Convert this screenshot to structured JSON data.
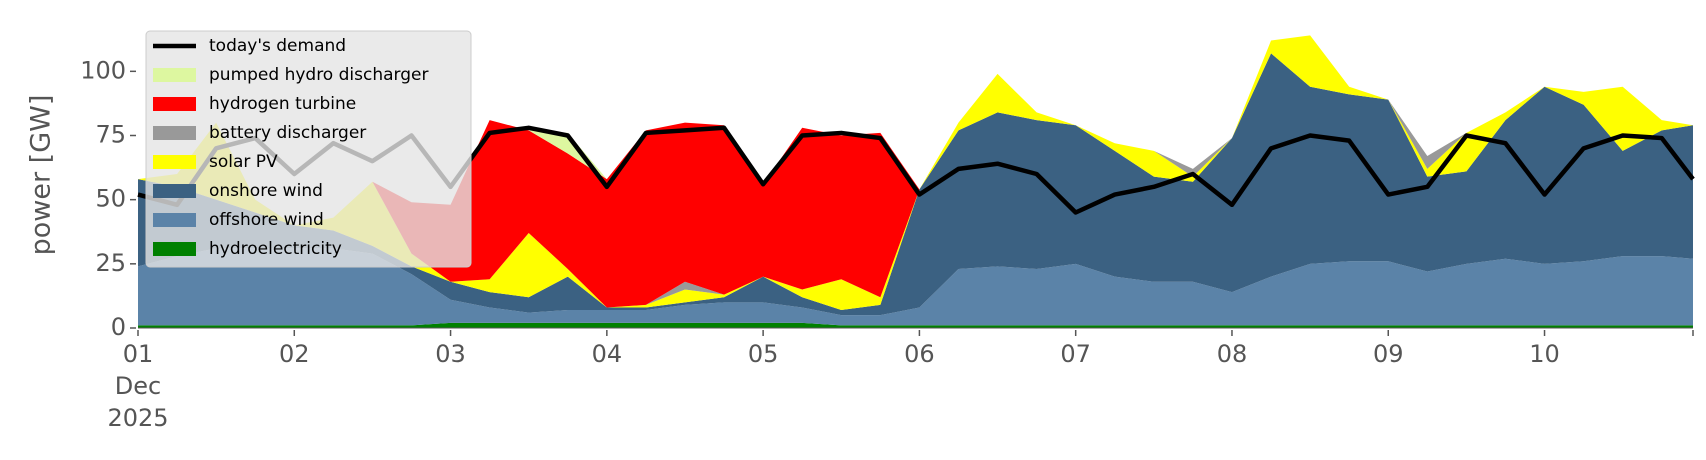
{
  "chart_data": {
    "type": "stacked-area",
    "y_label": "power [GW]",
    "x": [
      1,
      1.25,
      1.5,
      1.75,
      2,
      2.25,
      2.5,
      2.75,
      3,
      3.25,
      3.5,
      3.75,
      4,
      4.25,
      4.5,
      4.75,
      5,
      5.25,
      5.5,
      5.75,
      6,
      6.25,
      6.5,
      6.75,
      7,
      7.25,
      7.5,
      7.75,
      8,
      8.25,
      8.5,
      8.75,
      9,
      9.25,
      9.5,
      9.75,
      10,
      10.25,
      10.5,
      10.75,
      10.95
    ],
    "xlim": [
      1,
      10.95
    ],
    "xticks": [
      {
        "value": 1,
        "label": "01\nDec\n2025"
      },
      {
        "value": 2,
        "label": "02"
      },
      {
        "value": 3,
        "label": "03"
      },
      {
        "value": 4,
        "label": "04"
      },
      {
        "value": 5,
        "label": "05"
      },
      {
        "value": 6,
        "label": "06"
      },
      {
        "value": 7,
        "label": "07"
      },
      {
        "value": 8,
        "label": "08"
      },
      {
        "value": 9,
        "label": "09"
      },
      {
        "value": 10,
        "label": "10"
      }
    ],
    "ylim": [
      0,
      120
    ],
    "yticks": [
      0,
      25,
      50,
      75,
      100
    ],
    "demand": {
      "name": "today's demand",
      "color": "#000000",
      "values": [
        52,
        48,
        70,
        74,
        60,
        72,
        65,
        75,
        55,
        76,
        78,
        75,
        55,
        76,
        77,
        78,
        56,
        75,
        76,
        74,
        52,
        62,
        64,
        60,
        45,
        52,
        55,
        60,
        48,
        70,
        75,
        73,
        52,
        55,
        75,
        72,
        52,
        70,
        75,
        74,
        58
      ]
    },
    "series": [
      {
        "name": "pumped hydro discharger",
        "color": "#ddf7a0",
        "values": [
          0,
          0,
          0,
          0,
          0,
          0,
          0,
          0,
          0,
          0,
          0,
          8,
          0,
          0,
          0,
          0,
          0,
          0,
          0,
          0,
          0,
          0,
          0,
          0,
          0,
          0,
          0,
          0,
          0,
          0,
          0,
          0,
          0,
          0,
          0,
          0,
          0,
          0,
          0,
          0,
          0
        ]
      },
      {
        "name": "hydrogen turbine",
        "color": "#ff0000",
        "values": [
          0,
          0,
          0,
          0,
          0,
          0,
          0,
          20,
          30,
          62,
          40,
          45,
          50,
          68,
          62,
          66,
          36,
          63,
          56,
          64,
          0,
          0,
          0,
          0,
          0,
          0,
          0,
          0,
          0,
          0,
          0,
          0,
          0,
          0,
          0,
          0,
          0,
          0,
          0,
          0,
          0
        ]
      },
      {
        "name": "battery discharger",
        "color": "#999999",
        "values": [
          0,
          0,
          0,
          0,
          0,
          0,
          0,
          0,
          0,
          0,
          0,
          0,
          0,
          0,
          3,
          0,
          0,
          0,
          0,
          0,
          0,
          0,
          0,
          0,
          0,
          0,
          0,
          3,
          0,
          0,
          0,
          0,
          0,
          5,
          0,
          0,
          0,
          0,
          0,
          0,
          0
        ]
      },
      {
        "name": "solar PV",
        "color": "#ffff00",
        "values": [
          0,
          5,
          30,
          5,
          0,
          5,
          25,
          5,
          0,
          5,
          25,
          3,
          0,
          1,
          5,
          1,
          0,
          3,
          12,
          3,
          0,
          3,
          15,
          3,
          0,
          3,
          10,
          2,
          0,
          5,
          20,
          3,
          0,
          3,
          15,
          3,
          0,
          5,
          25,
          4,
          0
        ]
      },
      {
        "name": "onshore wind",
        "color": "#3b6182",
        "values": [
          34,
          27,
          19,
          14,
          9,
          7,
          3,
          3,
          7,
          6,
          6,
          13,
          1,
          1,
          1,
          2,
          10,
          4,
          2,
          4,
          46,
          54,
          60,
          58,
          54,
          49,
          41,
          39,
          60,
          87,
          69,
          65,
          63,
          37,
          36,
          54,
          69,
          61,
          41,
          49,
          52
        ]
      },
      {
        "name": "offshore wind",
        "color": "#5b83a8",
        "values": [
          23,
          27,
          30,
          30,
          30,
          30,
          28,
          20,
          9,
          6,
          4,
          5,
          5,
          5,
          7,
          8,
          8,
          6,
          4,
          4,
          7,
          22,
          23,
          22,
          24,
          19,
          17,
          17,
          13,
          19,
          24,
          25,
          25,
          21,
          24,
          26,
          24,
          25,
          27,
          27,
          26
        ]
      },
      {
        "name": "hydroelectricity",
        "color": "#008000",
        "values": [
          1,
          1,
          1,
          1,
          1,
          1,
          1,
          1,
          2,
          2,
          2,
          2,
          2,
          2,
          2,
          2,
          2,
          2,
          1,
          1,
          1,
          1,
          1,
          1,
          1,
          1,
          1,
          1,
          1,
          1,
          1,
          1,
          1,
          1,
          1,
          1,
          1,
          1,
          1,
          1,
          1
        ]
      }
    ]
  }
}
